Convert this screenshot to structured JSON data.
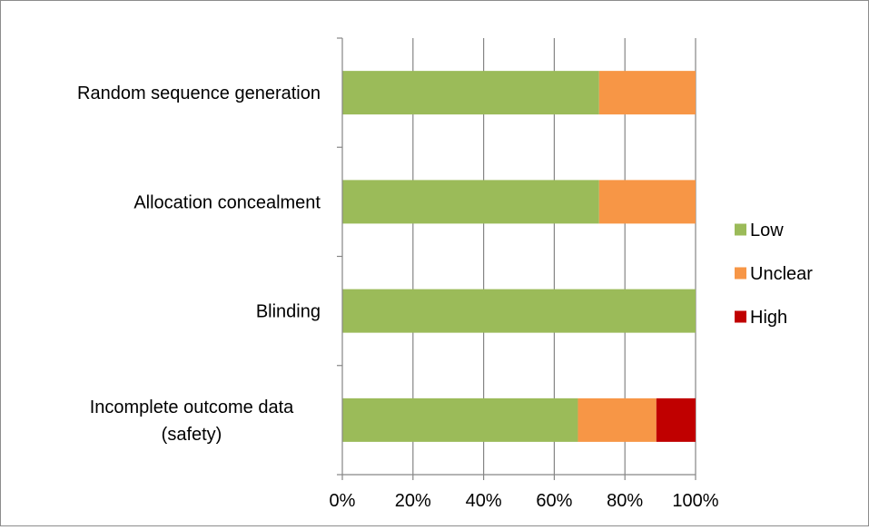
{
  "chart_data": {
    "type": "bar",
    "orientation": "horizontal",
    "stacked": true,
    "categories": [
      "Random sequence generation",
      "Allocation concealment",
      "Blinding",
      "Incomplete outcome data (safety)"
    ],
    "category_label_lines": [
      [
        "Random sequence generation"
      ],
      [
        "Allocation concealment"
      ],
      [
        "Blinding"
      ],
      [
        "Incomplete outcome data",
        "(safety)"
      ]
    ],
    "series": [
      {
        "name": "Low",
        "color": "#9bbb59",
        "values": [
          72.7,
          72.7,
          100,
          66.7
        ]
      },
      {
        "name": "Unclear",
        "color": "#f79646",
        "values": [
          27.3,
          27.3,
          0,
          22.2
        ]
      },
      {
        "name": "High",
        "color": "#c00000",
        "values": [
          0,
          0,
          0,
          11.1
        ]
      }
    ],
    "x_ticks": [
      0,
      20,
      40,
      60,
      80,
      100
    ],
    "x_tick_labels": [
      "0%",
      "20%",
      "40%",
      "60%",
      "80%",
      "100%"
    ],
    "xlim": [
      0,
      100
    ],
    "grid": "vertical",
    "legend_position": "right",
    "title": "",
    "xlabel": "",
    "ylabel": ""
  }
}
